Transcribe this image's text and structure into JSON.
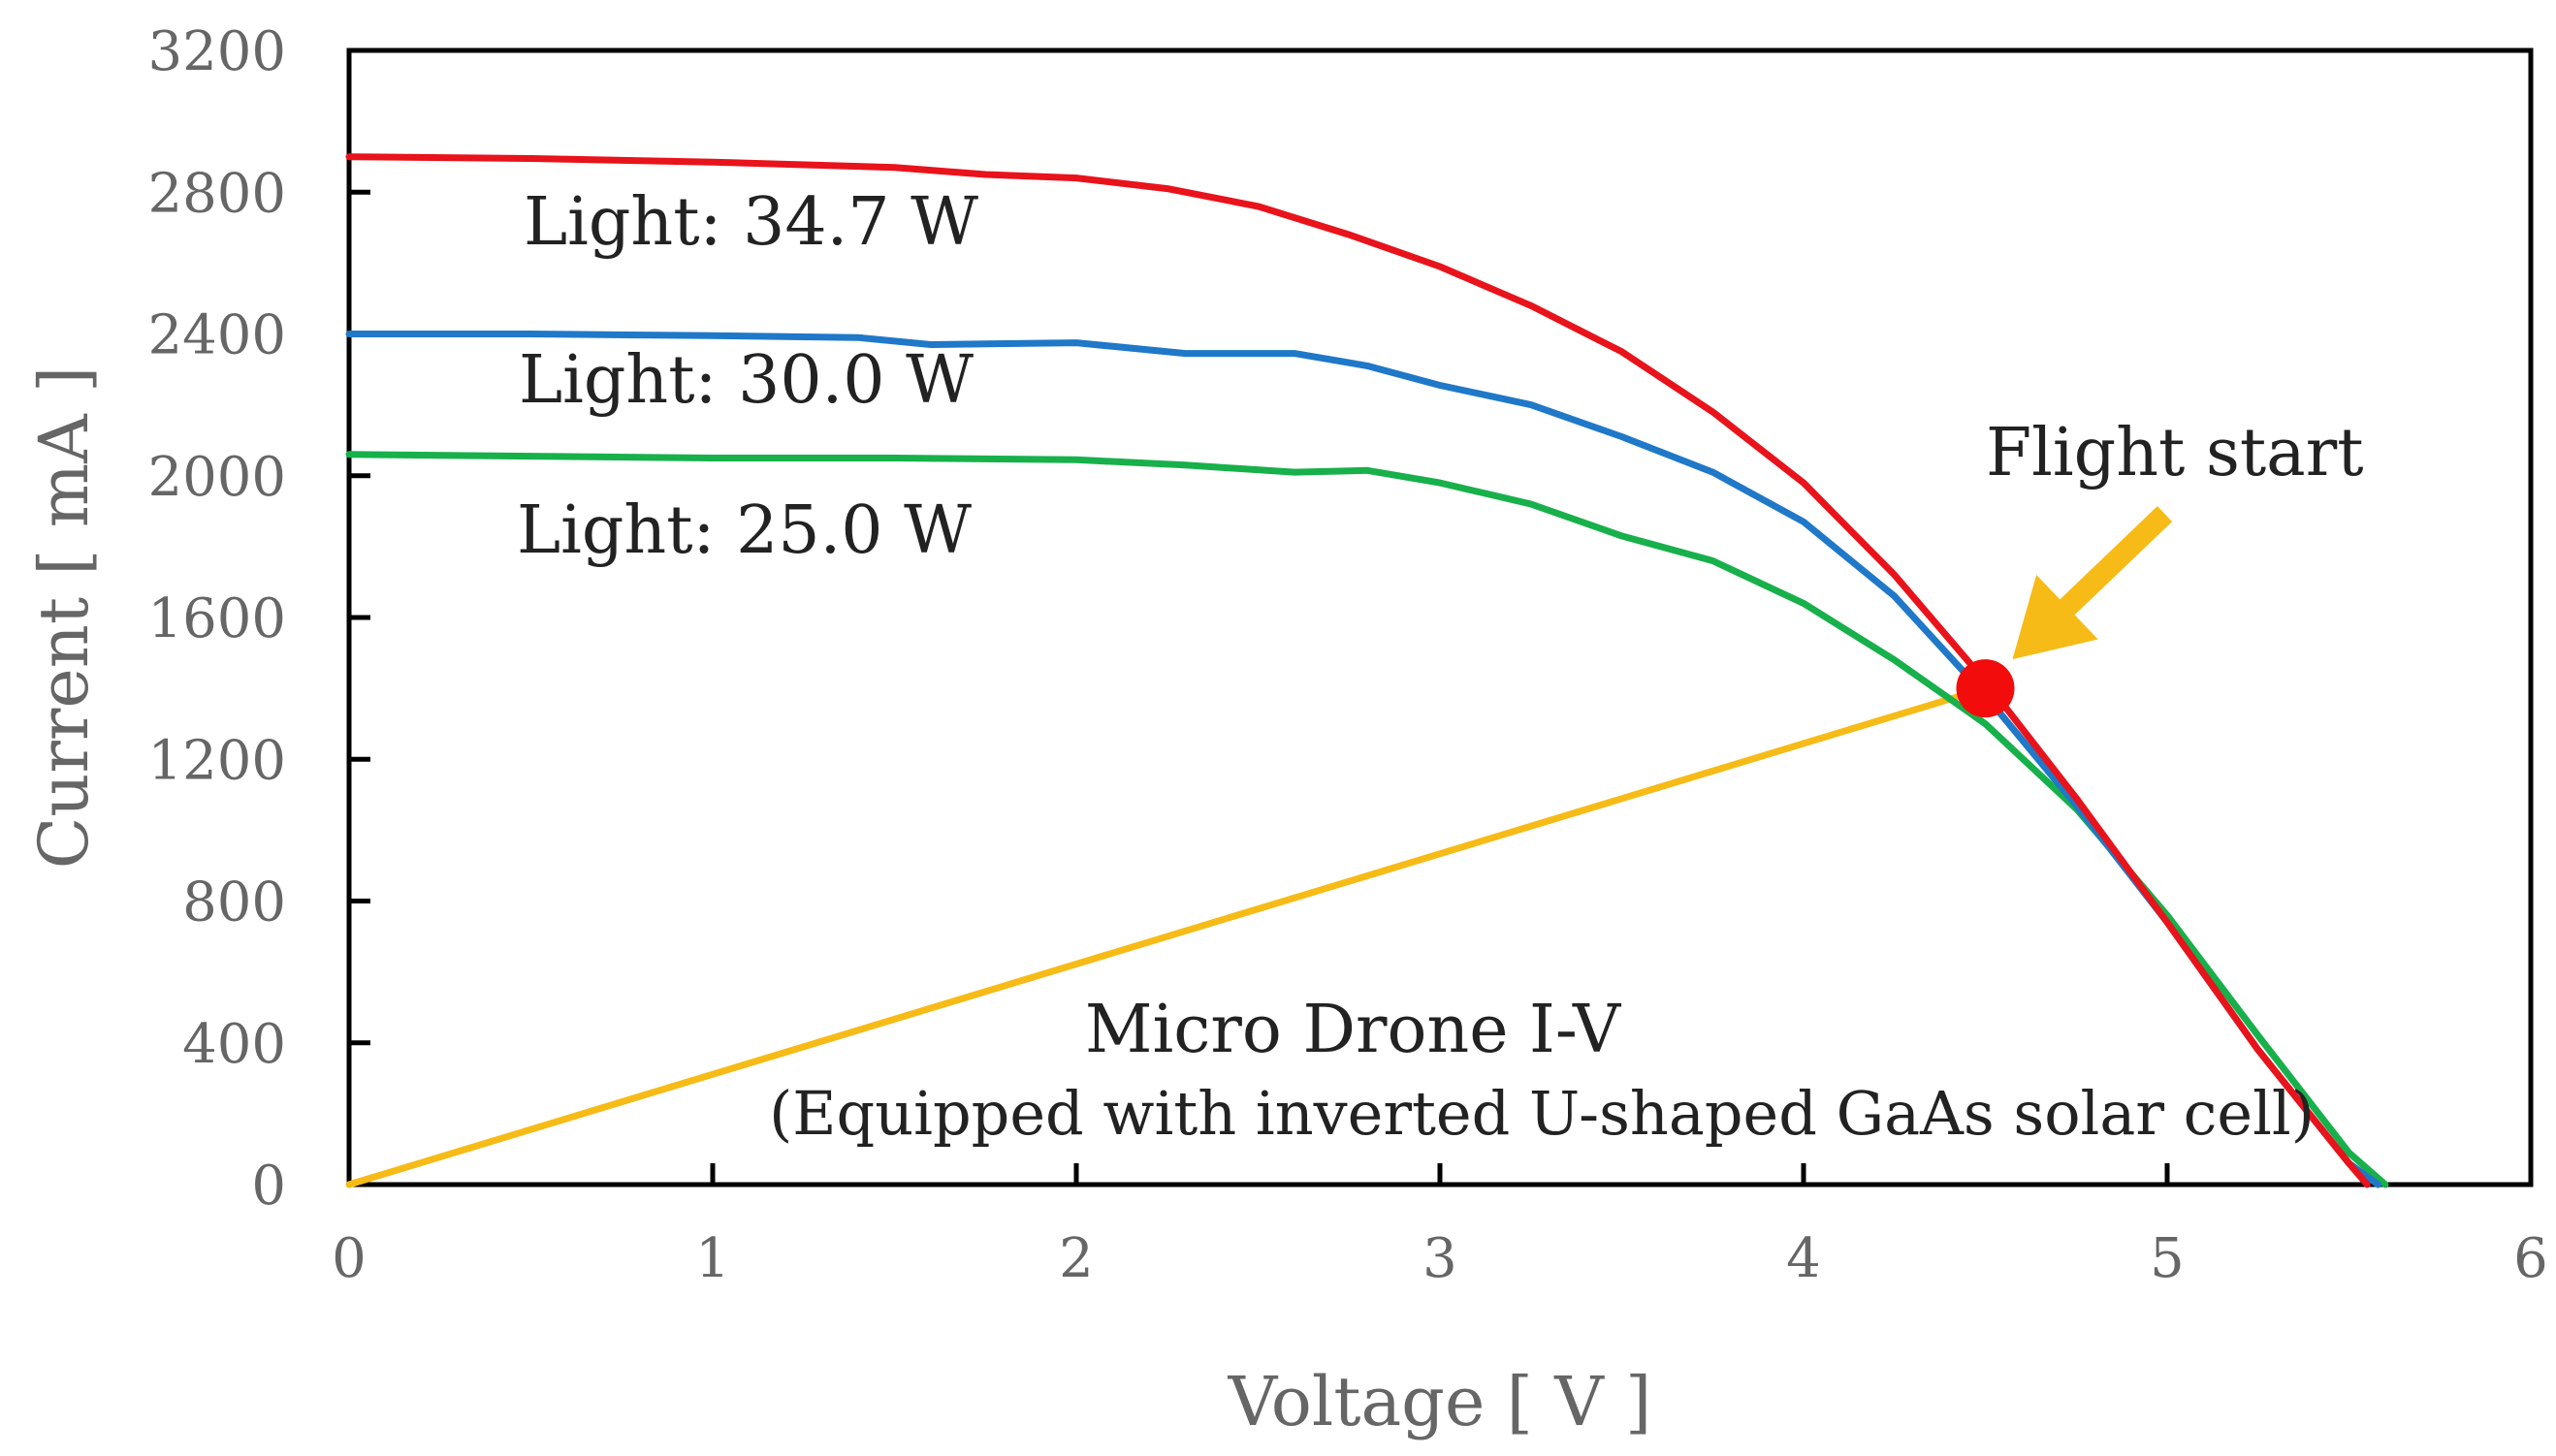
{
  "chart_data": {
    "type": "line",
    "title": "",
    "xlabel": "Voltage [ V ]",
    "ylabel": "Current [ mA ]",
    "xlim": [
      0,
      6
    ],
    "ylim": [
      0,
      3200
    ],
    "xticks": [
      "0",
      "1",
      "2",
      "3",
      "4",
      "5",
      "6"
    ],
    "yticks": [
      "0",
      "400",
      "800",
      "1200",
      "1600",
      "2000",
      "2400",
      "2800",
      "3200"
    ],
    "grid": false,
    "series": [
      {
        "name": "Light: 34.7 W",
        "color": "#e8131b",
        "x": [
          0,
          0.5,
          1,
          1.5,
          1.75,
          2,
          2.25,
          2.5,
          2.75,
          3,
          3.25,
          3.5,
          3.75,
          4,
          4.25,
          4.5,
          4.75,
          5,
          5.25,
          5.5,
          5.55
        ],
        "y": [
          2900,
          2895,
          2885,
          2870,
          2850,
          2840,
          2810,
          2760,
          2680,
          2590,
          2480,
          2350,
          2180,
          1980,
          1720,
          1420,
          1090,
          740,
          380,
          60,
          0
        ]
      },
      {
        "name": "Light: 30.0 W",
        "color": "#1f78c8",
        "x": [
          0,
          0.5,
          1,
          1.4,
          1.6,
          2,
          2.3,
          2.6,
          2.8,
          3,
          3.25,
          3.5,
          3.75,
          4,
          4.25,
          4.5,
          4.75,
          5,
          5.25,
          5.5,
          5.58
        ],
        "y": [
          2400,
          2400,
          2395,
          2390,
          2370,
          2375,
          2345,
          2345,
          2310,
          2255,
          2200,
          2110,
          2010,
          1870,
          1660,
          1380,
          1070,
          740,
          380,
          60,
          0
        ]
      },
      {
        "name": "Light: 25.0 W",
        "color": "#17b04a",
        "x": [
          0,
          0.5,
          1,
          1.5,
          2,
          2.3,
          2.6,
          2.8,
          3,
          3.25,
          3.5,
          3.75,
          4,
          4.25,
          4.5,
          4.75,
          5,
          5.25,
          5.5,
          5.6
        ],
        "y": [
          2060,
          2055,
          2050,
          2050,
          2045,
          2030,
          2010,
          2015,
          1980,
          1920,
          1830,
          1760,
          1640,
          1480,
          1300,
          1060,
          760,
          420,
          90,
          0
        ]
      },
      {
        "name": "Micro Drone I-V",
        "color": "#f6bb16",
        "x": [
          0,
          4.5
        ],
        "y": [
          0,
          1400
        ]
      }
    ],
    "annotations": {
      "label_347": "Light: 34.7 W",
      "label_300": "Light: 30.0 W",
      "label_250": "Light: 25.0 W",
      "flight_start": "Flight start",
      "drone_title": "Micro Drone I-V",
      "drone_subtitle": "(Equipped with inverted U-shaped GaAs solar cell)"
    },
    "flight_start_point": {
      "x": 4.5,
      "y": 1400,
      "color": "#f20c0c"
    },
    "arrow_color": "#f6bb16"
  }
}
